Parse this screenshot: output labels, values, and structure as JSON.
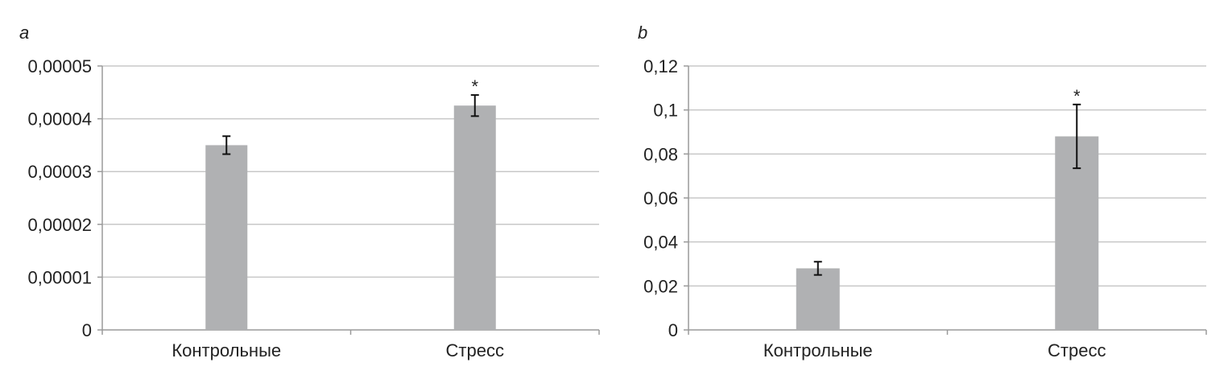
{
  "chart_data": [
    {
      "type": "bar",
      "panel_label": "a",
      "categories": [
        "Контрольные",
        "Стресс"
      ],
      "values": [
        3.5e-05,
        4.25e-05
      ],
      "errors": [
        1.7e-06,
        2e-06
      ],
      "annotations": [
        "",
        "*"
      ],
      "yticks": [
        "0",
        "0,00001",
        "0,00002",
        "0,00003",
        "0,00004",
        "0,00005"
      ],
      "ylim": [
        0,
        5e-05
      ],
      "grid": true,
      "colors": {
        "bar": "#b0b1b3",
        "grid": "#c8c8c8",
        "axis": "#9a9a9a",
        "error": "#111111"
      }
    },
    {
      "type": "bar",
      "panel_label": "b",
      "categories": [
        "Контрольные",
        "Стресс"
      ],
      "values": [
        0.028,
        0.088
      ],
      "errors": [
        0.003,
        0.0145
      ],
      "annotations": [
        "",
        "*"
      ],
      "yticks": [
        "0",
        "0,02",
        "0,04",
        "0,06",
        "0,08",
        "0,1",
        "0,12"
      ],
      "ylim": [
        0,
        0.12
      ],
      "grid": true,
      "colors": {
        "bar": "#b0b1b3",
        "grid": "#c8c8c8",
        "axis": "#9a9a9a",
        "error": "#111111"
      }
    }
  ]
}
